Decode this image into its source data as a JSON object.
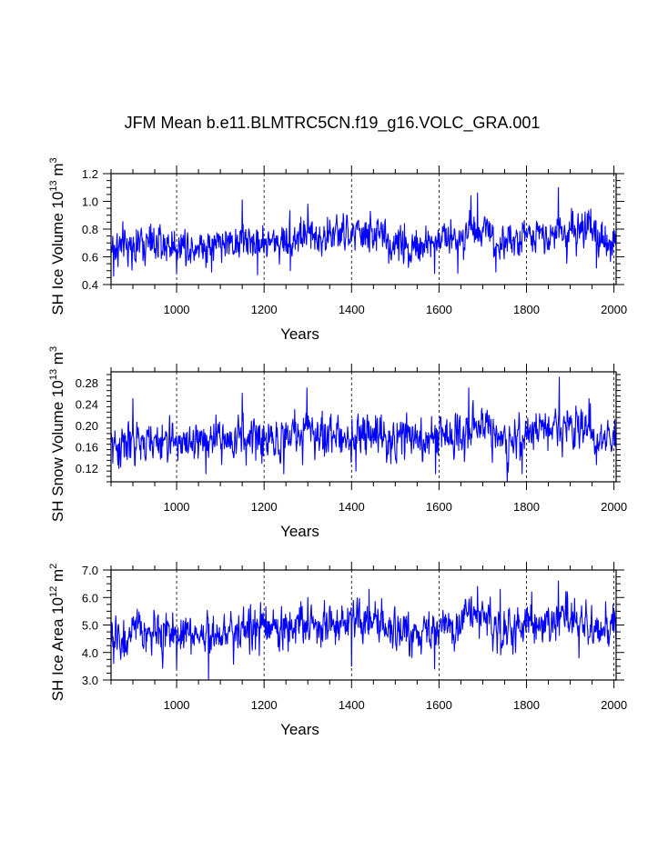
{
  "title": "JFM Mean b.e11.BLMTRC5CN.f19_g16.VOLC_GRA.001",
  "chart_data": [
    {
      "type": "line",
      "ylabel_main": "SH Ice Volume 10",
      "ylabel_exp": "13",
      "ylabel_unit": " m",
      "ylabel_unit_exp": "3",
      "xlabel": "Years",
      "xlim": [
        850,
        2005
      ],
      "ylim": [
        0.4,
        1.2
      ],
      "xticks": [
        1000,
        1200,
        1400,
        1600,
        1800,
        2000
      ],
      "xtick_labels": [
        "1000",
        "1200",
        "1400",
        "1600",
        "1800",
        "2000"
      ],
      "yticks": [
        0.4,
        0.6,
        0.8,
        1.0,
        1.2
      ],
      "ytick_labels": [
        "0.4",
        "0.6",
        "0.8",
        "1.0",
        "1.2"
      ],
      "grid": "vertical-dashed",
      "color": "#0000ff",
      "series_summary": {
        "start": 850,
        "end": 2005,
        "mean": 0.73,
        "min": 0.46,
        "max": 1.1
      },
      "segments": [
        {
          "start": 850,
          "end": 900,
          "mean": 0.67
        },
        {
          "start": 900,
          "end": 1100,
          "mean": 0.69
        },
        {
          "start": 1100,
          "end": 1250,
          "mean": 0.71
        },
        {
          "start": 1250,
          "end": 1350,
          "mean": 0.75
        },
        {
          "start": 1350,
          "end": 1480,
          "mean": 0.76
        },
        {
          "start": 1480,
          "end": 1600,
          "mean": 0.69
        },
        {
          "start": 1600,
          "end": 1660,
          "mean": 0.74
        },
        {
          "start": 1660,
          "end": 1720,
          "mean": 0.81
        },
        {
          "start": 1720,
          "end": 1800,
          "mean": 0.71
        },
        {
          "start": 1800,
          "end": 1950,
          "mean": 0.78
        },
        {
          "start": 1950,
          "end": 2005,
          "mean": 0.72
        }
      ],
      "peaks": [
        [
          1673,
          1.04
        ],
        [
          1688,
          1.06
        ],
        [
          1873,
          1.1
        ],
        [
          1150,
          1.01
        ],
        [
          1300,
          0.98
        ],
        [
          1903,
          0.95
        ]
      ],
      "troughs": [
        [
          856,
          0.46
        ],
        [
          1000,
          0.48
        ],
        [
          1080,
          0.49
        ],
        [
          1185,
          0.47
        ],
        [
          1260,
          0.5
        ],
        [
          1590,
          0.48
        ],
        [
          1643,
          0.48
        ],
        [
          1730,
          0.49
        ],
        [
          1960,
          0.52
        ]
      ],
      "noise_sd": 0.075
    },
    {
      "type": "line",
      "ylabel_main": "SH Snow Volume 10",
      "ylabel_exp": "13",
      "ylabel_unit": " m",
      "ylabel_unit_exp": "3",
      "xlabel": "Years",
      "xlim": [
        850,
        2005
      ],
      "ylim": [
        0.095,
        0.3
      ],
      "xticks": [
        1000,
        1200,
        1400,
        1600,
        1800,
        2000
      ],
      "xtick_labels": [
        "1000",
        "1200",
        "1400",
        "1600",
        "1800",
        "2000"
      ],
      "yticks": [
        0.12,
        0.16,
        0.2,
        0.24,
        0.28
      ],
      "ytick_labels": [
        "0.12",
        "0.16",
        "0.20",
        "0.24",
        "0.28"
      ],
      "grid": "vertical-dashed",
      "color": "#0000ff",
      "series_summary": {
        "start": 850,
        "end": 2005,
        "mean": 0.18,
        "min": 0.095,
        "max": 0.29
      },
      "segments": [
        {
          "start": 850,
          "end": 950,
          "mean": 0.165
        },
        {
          "start": 950,
          "end": 1100,
          "mean": 0.17
        },
        {
          "start": 1100,
          "end": 1250,
          "mean": 0.175
        },
        {
          "start": 1250,
          "end": 1350,
          "mean": 0.185
        },
        {
          "start": 1350,
          "end": 1480,
          "mean": 0.18
        },
        {
          "start": 1480,
          "end": 1600,
          "mean": 0.175
        },
        {
          "start": 1600,
          "end": 1660,
          "mean": 0.185
        },
        {
          "start": 1660,
          "end": 1720,
          "mean": 0.2
        },
        {
          "start": 1720,
          "end": 1800,
          "mean": 0.175
        },
        {
          "start": 1800,
          "end": 1950,
          "mean": 0.195
        },
        {
          "start": 1950,
          "end": 2005,
          "mean": 0.18
        }
      ],
      "peaks": [
        [
          900,
          0.25
        ],
        [
          1150,
          0.26
        ],
        [
          1298,
          0.27
        ],
        [
          1668,
          0.27
        ],
        [
          1875,
          0.29
        ],
        [
          1943,
          0.25
        ]
      ],
      "troughs": [
        [
          868,
          0.12
        ],
        [
          1067,
          0.11
        ],
        [
          1245,
          0.11
        ],
        [
          1410,
          0.115
        ],
        [
          1592,
          0.11
        ],
        [
          1756,
          0.095
        ],
        [
          1790,
          0.11
        ]
      ],
      "noise_sd": 0.021
    },
    {
      "type": "line",
      "ylabel_main": "SH Ice Area 10",
      "ylabel_exp": "12",
      "ylabel_unit": " m",
      "ylabel_unit_exp": "2",
      "xlabel": "Years",
      "xlim": [
        850,
        2005
      ],
      "ylim": [
        3.0,
        7.0
      ],
      "xticks": [
        1000,
        1200,
        1400,
        1600,
        1800,
        2000
      ],
      "xtick_labels": [
        "1000",
        "1200",
        "1400",
        "1600",
        "1800",
        "2000"
      ],
      "yticks": [
        3.0,
        4.0,
        5.0,
        6.0,
        7.0
      ],
      "ytick_labels": [
        "3.0",
        "4.0",
        "5.0",
        "6.0",
        "7.0"
      ],
      "grid": "vertical-dashed",
      "color": "#0000ff",
      "series_summary": {
        "start": 850,
        "end": 2005,
        "mean": 4.9,
        "min": 3.0,
        "max": 6.6
      },
      "segments": [
        {
          "start": 850,
          "end": 900,
          "mean": 4.5
        },
        {
          "start": 900,
          "end": 1100,
          "mean": 4.7
        },
        {
          "start": 1100,
          "end": 1250,
          "mean": 4.85
        },
        {
          "start": 1250,
          "end": 1350,
          "mean": 5.05
        },
        {
          "start": 1350,
          "end": 1480,
          "mean": 5.0
        },
        {
          "start": 1480,
          "end": 1600,
          "mean": 4.75
        },
        {
          "start": 1600,
          "end": 1660,
          "mean": 4.95
        },
        {
          "start": 1660,
          "end": 1720,
          "mean": 5.35
        },
        {
          "start": 1720,
          "end": 1800,
          "mean": 4.8
        },
        {
          "start": 1800,
          "end": 1950,
          "mean": 5.15
        },
        {
          "start": 1950,
          "end": 2005,
          "mean": 4.95
        }
      ],
      "peaks": [
        [
          1688,
          6.4
        ],
        [
          1740,
          6.3
        ],
        [
          1873,
          6.6
        ],
        [
          1440,
          6.3
        ],
        [
          1300,
          6.0
        ],
        [
          1812,
          6.2
        ]
      ],
      "troughs": [
        [
          856,
          3.6
        ],
        [
          1073,
          3.0
        ],
        [
          1000,
          3.4
        ],
        [
          1400,
          3.5
        ],
        [
          1590,
          3.4
        ],
        [
          1920,
          3.8
        ]
      ],
      "noise_sd": 0.42
    }
  ]
}
